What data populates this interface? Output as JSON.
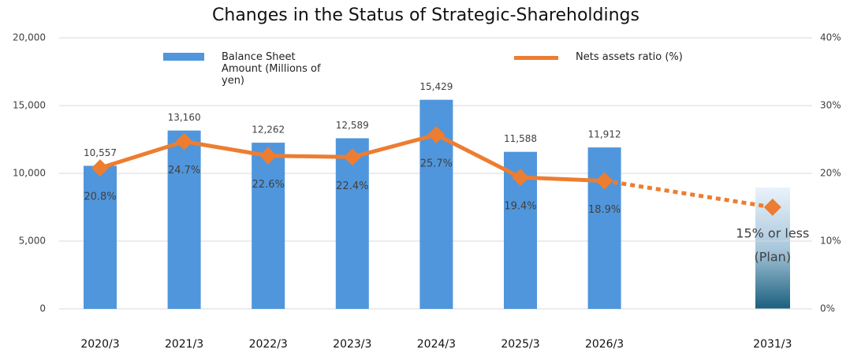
{
  "chart_data": {
    "type": "bar_line",
    "title": "Changes in the Status of Strategic-Shareholdings",
    "categories": [
      "2020/3",
      "2021/3",
      "2022/3",
      "2023/3",
      "2024/3",
      "2025/3",
      "2026/3",
      null,
      "2031/3"
    ],
    "series": [
      {
        "name": "Balance Sheet Amount (Millions of yen)",
        "type": "bar",
        "color": "#5096dc",
        "values": [
          10557,
          13160,
          12262,
          12589,
          15429,
          11588,
          11912,
          null,
          null
        ],
        "value_labels": [
          "10,557",
          "13,160",
          "12,262",
          "12,589",
          "15,429",
          "11,588",
          "11,912",
          null,
          null
        ]
      },
      {
        "name": "Nets assets ratio (%)",
        "type": "line",
        "axis": "y2",
        "color": "#ed7d31",
        "values": [
          20.8,
          24.7,
          22.6,
          22.4,
          25.7,
          19.4,
          18.9,
          null,
          15
        ],
        "value_labels": [
          "20.8%",
          "24.7%",
          "22.6%",
          "22.4%",
          "25.7%",
          "19.4%",
          "18.9%",
          null,
          null
        ]
      }
    ],
    "annotations": [
      "15% or less",
      "(Plan)"
    ],
    "ylim": [
      0,
      20000
    ],
    "yticks": [
      0,
      {
        "value": 5000,
        "label": "5,000"
      },
      {
        "value": 10000,
        "label": "10,000"
      },
      {
        "value": 15000,
        "label": "15,000"
      },
      {
        "value": 20000,
        "label": "20,000"
      }
    ],
    "y2lim": [
      0,
      40
    ],
    "y2ticks": [
      {
        "value": 0,
        "label": "0%"
      },
      {
        "value": 10,
        "label": "10%"
      },
      {
        "value": 20,
        "label": "20%"
      },
      {
        "value": 30,
        "label": "30%"
      },
      {
        "value": 40,
        "label": "40%"
      }
    ],
    "grid": true
  }
}
